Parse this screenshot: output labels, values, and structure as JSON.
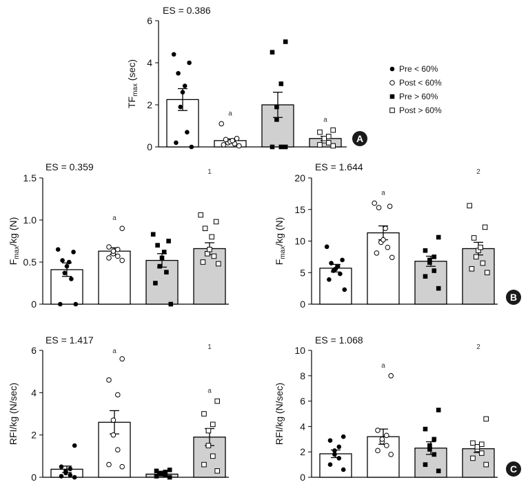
{
  "legend": [
    {
      "label": "Pre   < 60%",
      "marker": "filled-circle"
    },
    {
      "label": "Post < 60%",
      "marker": "open-circle"
    },
    {
      "label": "Pre   > 60%",
      "marker": "filled-square"
    },
    {
      "label": "Post > 60%",
      "marker": "open-square"
    }
  ],
  "chart_data": [
    {
      "type": "bar",
      "panel": "A",
      "es": "ES = 0.386",
      "ylabel": {
        "main": "TF",
        "sub": "max",
        "rest": " (sec)"
      },
      "ylim": [
        0,
        6
      ],
      "yticks": [
        0,
        2,
        4,
        6
      ],
      "ytick_labels": [
        "0",
        "2",
        "4",
        "6"
      ],
      "group_annotation": "",
      "bars": [
        {
          "value": 2.25,
          "sem": 0.52,
          "fill": "#ffffff",
          "marker": "filled-circle",
          "annotation": "",
          "points": [
            0.0,
            0.2,
            0.7,
            1.9,
            2.6,
            2.9,
            3.5,
            4.0,
            4.4
          ]
        },
        {
          "value": 0.3,
          "sem": 0.08,
          "fill": "#ffffff",
          "marker": "open-circle",
          "annotation": "a",
          "points": [
            0.05,
            0.1,
            0.15,
            0.2,
            0.25,
            0.3,
            0.35,
            0.4,
            1.1
          ]
        },
        {
          "value": 2.0,
          "sem": 0.6,
          "fill": "#d0d0d0",
          "marker": "filled-square",
          "annotation": "",
          "points": [
            0.0,
            0.0,
            0.0,
            1.3,
            1.9,
            3.0,
            4.5,
            5.0
          ]
        },
        {
          "value": 0.4,
          "sem": 0.1,
          "fill": "#d0d0d0",
          "marker": "open-square",
          "annotation": "a",
          "points": [
            0.05,
            0.1,
            0.2,
            0.3,
            0.4,
            0.5,
            0.7,
            0.8
          ]
        }
      ]
    },
    {
      "type": "bar",
      "panel": "",
      "es": "ES = 0.359",
      "ylabel": {
        "main": "F",
        "sub": "max",
        "rest": "/kg (N)"
      },
      "ylim": [
        0,
        1.5
      ],
      "yticks": [
        0,
        0.5,
        1.0,
        1.5
      ],
      "ytick_labels": [
        "0",
        "0.5",
        "1.0",
        "1.5"
      ],
      "group_annotation": "1",
      "bars": [
        {
          "value": 0.41,
          "sem": 0.08,
          "fill": "#ffffff",
          "marker": "filled-circle",
          "annotation": "",
          "points": [
            0.0,
            0.0,
            0.3,
            0.37,
            0.45,
            0.5,
            0.52,
            0.62,
            0.65
          ]
        },
        {
          "value": 0.63,
          "sem": 0.04,
          "fill": "#ffffff",
          "marker": "open-circle",
          "annotation": "a",
          "points": [
            0.52,
            0.55,
            0.57,
            0.6,
            0.63,
            0.65,
            0.68,
            0.9
          ]
        },
        {
          "value": 0.52,
          "sem": 0.08,
          "fill": "#d0d0d0",
          "marker": "filled-square",
          "annotation": "",
          "points": [
            0.0,
            0.25,
            0.38,
            0.45,
            0.55,
            0.62,
            0.7,
            0.75,
            0.83
          ]
        },
        {
          "value": 0.66,
          "sem": 0.07,
          "fill": "#d0d0d0",
          "marker": "open-square",
          "annotation": "",
          "points": [
            0.48,
            0.5,
            0.57,
            0.6,
            0.65,
            0.8,
            0.9,
            0.98,
            1.06
          ]
        }
      ]
    },
    {
      "type": "bar",
      "panel": "B",
      "es": "ES = 1.644",
      "ylabel": {
        "main": "F",
        "sub": "max",
        "rest": "/kg (N)"
      },
      "ylim": [
        0,
        20
      ],
      "yticks": [
        0,
        5,
        10,
        15,
        20
      ],
      "ytick_labels": [
        "0",
        "5",
        "10",
        "15",
        "20"
      ],
      "group_annotation": "2",
      "bars": [
        {
          "value": 5.7,
          "sem": 0.6,
          "fill": "#ffffff",
          "marker": "filled-circle",
          "annotation": "",
          "points": [
            2.3,
            3.9,
            4.8,
            5.3,
            5.6,
            6.0,
            6.5,
            7.0,
            9.1
          ]
        },
        {
          "value": 11.3,
          "sem": 1.1,
          "fill": "#ffffff",
          "marker": "open-circle",
          "annotation": "a",
          "points": [
            7.4,
            8.1,
            9.0,
            9.8,
            10.2,
            12.0,
            15.3,
            15.5,
            16.0
          ]
        },
        {
          "value": 6.8,
          "sem": 0.8,
          "fill": "#d0d0d0",
          "marker": "filled-square",
          "annotation": "",
          "points": [
            2.5,
            4.4,
            5.3,
            6.6,
            7.0,
            7.5,
            8.5,
            10.6
          ]
        },
        {
          "value": 8.8,
          "sem": 1.0,
          "fill": "#d0d0d0",
          "marker": "open-square",
          "annotation": "",
          "points": [
            5.0,
            5.6,
            6.5,
            7.5,
            8.5,
            9.0,
            10.5,
            12.2,
            15.6
          ]
        }
      ]
    },
    {
      "type": "bar",
      "panel": "",
      "es": "ES = 1.417",
      "ylabel": {
        "main": "RFI/kg (N/sec)",
        "sub": "",
        "rest": ""
      },
      "ylim": [
        0,
        6
      ],
      "yticks": [
        0,
        2,
        4,
        6
      ],
      "ytick_labels": [
        "0",
        "2",
        "4",
        "6"
      ],
      "group_annotation": "1",
      "bars": [
        {
          "value": 0.38,
          "sem": 0.15,
          "fill": "#ffffff",
          "marker": "filled-circle",
          "annotation": "",
          "points": [
            0.0,
            0.05,
            0.1,
            0.2,
            0.3,
            0.4,
            0.5,
            1.5
          ]
        },
        {
          "value": 2.6,
          "sem": 0.55,
          "fill": "#ffffff",
          "marker": "open-circle",
          "annotation": "a",
          "points": [
            0.5,
            0.6,
            1.3,
            2.0,
            2.7,
            3.9,
            4.6,
            5.6
          ]
        },
        {
          "value": 0.15,
          "sem": 0.03,
          "fill": "#d0d0d0",
          "marker": "filled-square",
          "annotation": "",
          "points": [
            0.0,
            0.05,
            0.1,
            0.15,
            0.2,
            0.25,
            0.3,
            0.35
          ]
        },
        {
          "value": 1.9,
          "sem": 0.4,
          "fill": "#d0d0d0",
          "marker": "open-square",
          "annotation": "a",
          "points": [
            0.3,
            0.6,
            1.0,
            1.5,
            2.2,
            2.5,
            3.0,
            3.6
          ]
        }
      ]
    },
    {
      "type": "bar",
      "panel": "C",
      "es": "ES = 1.068",
      "ylabel": {
        "main": "RFI/kg (N/sec)",
        "sub": "",
        "rest": ""
      },
      "ylim": [
        0,
        10
      ],
      "yticks": [
        0,
        2,
        4,
        6,
        8,
        10
      ],
      "ytick_labels": [
        "0",
        "2",
        "4",
        "6",
        "8",
        "10"
      ],
      "group_annotation": "2",
      "bars": [
        {
          "value": 1.85,
          "sem": 0.3,
          "fill": "#ffffff",
          "marker": "filled-circle",
          "annotation": "",
          "points": [
            0.6,
            1.0,
            1.5,
            1.8,
            2.1,
            2.4,
            2.9,
            3.2
          ]
        },
        {
          "value": 3.2,
          "sem": 0.6,
          "fill": "#ffffff",
          "marker": "open-circle",
          "annotation": "a",
          "points": [
            1.8,
            2.1,
            2.5,
            2.8,
            3.0,
            3.3,
            3.7,
            8.0
          ]
        },
        {
          "value": 2.3,
          "sem": 0.5,
          "fill": "#d0d0d0",
          "marker": "filled-square",
          "annotation": "",
          "points": [
            0.5,
            1.0,
            1.8,
            2.2,
            2.5,
            3.0,
            3.8,
            5.3
          ]
        },
        {
          "value": 2.25,
          "sem": 0.3,
          "fill": "#d0d0d0",
          "marker": "open-square",
          "annotation": "",
          "points": [
            1.0,
            1.5,
            1.9,
            2.2,
            2.4,
            2.6,
            2.7,
            4.6
          ]
        }
      ]
    }
  ]
}
